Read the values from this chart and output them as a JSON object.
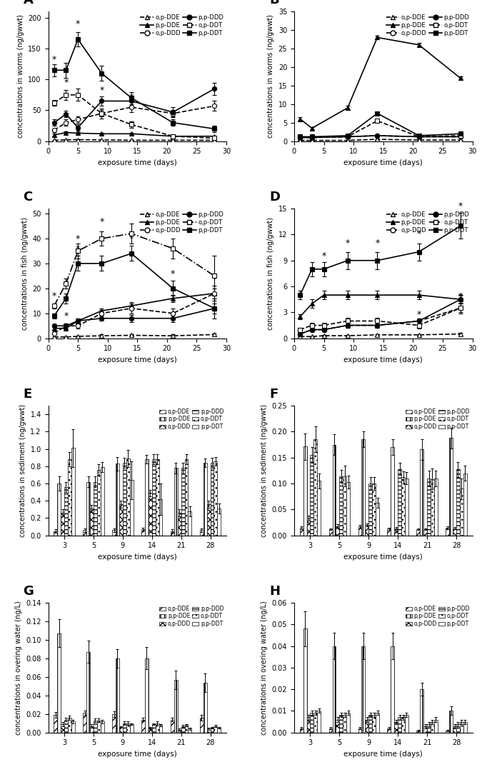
{
  "A": {
    "title": "A",
    "ylabel": "concentrations in worms (ng/gwwt)",
    "xlabel": "exposure time (days)",
    "xlim": [
      0,
      30
    ],
    "ylim": [
      0,
      210
    ],
    "yticks": [
      0,
      50,
      100,
      150,
      200
    ],
    "xticks": [
      0,
      5,
      10,
      15,
      20,
      25,
      30
    ],
    "time": [
      1,
      3,
      5,
      9,
      14,
      21,
      28
    ],
    "op_DDE": [
      1.5,
      2.0,
      2.5,
      2.0,
      1.5,
      1.5,
      1.5
    ],
    "pp_DDE": [
      10,
      14,
      13,
      12,
      12,
      8,
      8
    ],
    "op_DDD": [
      18,
      30,
      35,
      45,
      55,
      45,
      57
    ],
    "pp_DDD": [
      30,
      44,
      22,
      65,
      65,
      47,
      85
    ],
    "op_DDT": [
      62,
      75,
      75,
      45,
      27,
      8,
      5
    ],
    "pp_DDT": [
      115,
      115,
      165,
      110,
      70,
      30,
      20
    ],
    "op_DDE_err": [
      0.5,
      0.5,
      0.5,
      0.5,
      0.5,
      0.5,
      0.5
    ],
    "pp_DDE_err": [
      2,
      2,
      2,
      2,
      2,
      1,
      1
    ],
    "op_DDD_err": [
      3,
      5,
      5,
      5,
      8,
      5,
      8
    ],
    "pp_DDD_err": [
      5,
      5,
      5,
      8,
      8,
      8,
      10
    ],
    "op_DDT_err": [
      5,
      8,
      10,
      8,
      5,
      3,
      2
    ],
    "pp_DDT_err": [
      10,
      12,
      12,
      12,
      10,
      5,
      5
    ],
    "stars": [
      [
        1,
        125
      ],
      [
        3,
        88
      ],
      [
        5,
        182
      ],
      [
        9,
        75
      ],
      [
        14,
        63
      ],
      [
        21,
        33
      ],
      [
        28,
        10
      ]
    ]
  },
  "B": {
    "title": "B",
    "ylabel": "concentrations in worms (ng/gwwt)",
    "xlabel": "exposure time (days)",
    "xlim": [
      0,
      30
    ],
    "ylim": [
      0,
      35
    ],
    "yticks": [
      0,
      5,
      10,
      15,
      20,
      25,
      30,
      35
    ],
    "xticks": [
      0,
      5,
      10,
      15,
      20,
      25,
      30
    ],
    "time": [
      1,
      3,
      9,
      14,
      21,
      28
    ],
    "op_DDE": [
      0.2,
      0.2,
      0.2,
      0.5,
      0.3,
      0.3
    ],
    "pp_DDE": [
      6.0,
      3.5,
      9.0,
      28.0,
      26.0,
      17.0
    ],
    "op_DDD": [
      1.0,
      1.0,
      1.2,
      1.5,
      1.2,
      1.2
    ],
    "pp_DDD": [
      1.0,
      1.0,
      1.2,
      1.5,
      1.2,
      1.2
    ],
    "op_DDT": [
      1.0,
      1.0,
      1.2,
      5.5,
      1.2,
      1.5
    ],
    "pp_DDT": [
      1.2,
      1.2,
      1.5,
      7.5,
      1.5,
      2.0
    ],
    "op_DDE_err": [
      0.05,
      0.05,
      0.05,
      0.1,
      0.05,
      0.05
    ],
    "pp_DDE_err": [
      0.5,
      0.3,
      0.5,
      0.5,
      0.5,
      0.5
    ],
    "op_DDD_err": [
      0.1,
      0.1,
      0.1,
      0.2,
      0.1,
      0.1
    ],
    "pp_DDD_err": [
      0.1,
      0.1,
      0.1,
      0.2,
      0.1,
      0.1
    ],
    "op_DDT_err": [
      0.1,
      0.1,
      0.1,
      0.3,
      0.1,
      0.1
    ],
    "pp_DDT_err": [
      0.1,
      0.1,
      0.1,
      0.3,
      0.1,
      0.1
    ],
    "stars": []
  },
  "C": {
    "title": "C",
    "ylabel": "concentrations in fish (ng/gwwt)",
    "xlabel": "exposure time (days)",
    "xlim": [
      0,
      30
    ],
    "ylim": [
      0,
      52
    ],
    "yticks": [
      0,
      10,
      20,
      30,
      40,
      50
    ],
    "xticks": [
      0,
      5,
      10,
      15,
      20,
      25,
      30
    ],
    "time": [
      1,
      3,
      5,
      9,
      14,
      21,
      28
    ],
    "op_DDE": [
      0.5,
      0.5,
      0.8,
      1.0,
      1.2,
      1.0,
      1.5
    ],
    "pp_DDE": [
      4.0,
      4.0,
      7.0,
      11.0,
      13.0,
      16.0,
      18.0
    ],
    "op_DDD": [
      2.0,
      5.0,
      5.0,
      10.0,
      12.0,
      10.0,
      18.0
    ],
    "pp_DDD": [
      5.0,
      5.0,
      7.0,
      8.0,
      8.0,
      8.0,
      12.0
    ],
    "op_DDT": [
      13.0,
      22.0,
      35.0,
      40.0,
      42.0,
      36.0,
      25.0
    ],
    "pp_DDT": [
      9.0,
      16.0,
      30.0,
      30.0,
      34.0,
      20.0,
      12.0
    ],
    "op_DDE_err": [
      0.2,
      0.2,
      0.2,
      0.5,
      0.5,
      0.5,
      0.5
    ],
    "pp_DDE_err": [
      0.5,
      0.5,
      1.0,
      1.0,
      1.5,
      1.5,
      2.0
    ],
    "op_DDD_err": [
      0.5,
      1.0,
      1.0,
      1.5,
      2.0,
      2.0,
      3.0
    ],
    "pp_DDD_err": [
      0.5,
      1.0,
      1.0,
      1.0,
      1.5,
      1.5,
      2.0
    ],
    "op_DDT_err": [
      1.0,
      2.0,
      3.0,
      3.0,
      4.0,
      4.0,
      8.0
    ],
    "pp_DDT_err": [
      1.0,
      2.0,
      3.0,
      3.0,
      3.0,
      3.0,
      4.0
    ],
    "stars": [
      [
        1,
        15
      ],
      [
        3,
        7
      ],
      [
        3,
        19
      ],
      [
        5,
        38
      ],
      [
        5,
        34
      ],
      [
        9,
        45
      ],
      [
        14,
        38
      ],
      [
        21,
        24
      ],
      [
        28,
        22
      ],
      [
        28,
        22
      ]
    ]
  },
  "D": {
    "title": "D",
    "ylabel": "concentrations in fish (ng/gwwt)",
    "xlabel": "exposure time (days)",
    "xlim": [
      0,
      30
    ],
    "ylim": [
      0,
      15
    ],
    "yticks": [
      0,
      3,
      6,
      9,
      12,
      15
    ],
    "xticks": [
      0,
      5,
      10,
      15,
      20,
      25,
      30
    ],
    "time": [
      1,
      3,
      5,
      9,
      14,
      21,
      28
    ],
    "op_DDE": [
      0.2,
      0.2,
      0.3,
      0.3,
      0.4,
      0.4,
      0.5
    ],
    "pp_DDE": [
      2.5,
      4.0,
      5.0,
      5.0,
      5.0,
      5.0,
      4.5
    ],
    "op_DDD": [
      0.5,
      1.0,
      1.0,
      1.5,
      1.5,
      2.0,
      3.5
    ],
    "pp_DDD": [
      0.5,
      1.0,
      1.0,
      1.5,
      1.5,
      2.0,
      4.5
    ],
    "op_DDT": [
      1.0,
      1.5,
      1.5,
      2.0,
      2.0,
      1.5,
      3.5
    ],
    "pp_DDT": [
      5.0,
      8.0,
      8.0,
      9.0,
      9.0,
      10.0,
      13.0
    ],
    "op_DDE_err": [
      0.05,
      0.05,
      0.1,
      0.1,
      0.1,
      0.1,
      0.1
    ],
    "pp_DDE_err": [
      0.3,
      0.5,
      0.5,
      0.5,
      0.5,
      0.5,
      0.5
    ],
    "op_DDD_err": [
      0.1,
      0.2,
      0.2,
      0.3,
      0.3,
      0.3,
      0.5
    ],
    "pp_DDD_err": [
      0.1,
      0.2,
      0.2,
      0.3,
      0.3,
      0.3,
      0.5
    ],
    "op_DDT_err": [
      0.2,
      0.3,
      0.3,
      0.4,
      0.4,
      0.4,
      0.6
    ],
    "pp_DDT_err": [
      0.5,
      0.8,
      0.8,
      1.0,
      1.0,
      1.0,
      1.5
    ],
    "stars": [
      [
        5,
        9.0
      ],
      [
        9,
        10.5
      ],
      [
        14,
        10.5
      ],
      [
        21,
        11.5
      ],
      [
        21,
        2.2
      ],
      [
        28,
        14.8
      ],
      [
        28,
        4.3
      ],
      [
        28,
        4.3
      ]
    ]
  },
  "E": {
    "title": "E",
    "ylabel": "concentrations in sediment (ng/gwwt)",
    "xlabel": "exposure time (days)",
    "ylim": [
      0,
      1.5
    ],
    "yticks": [
      0.0,
      0.2,
      0.4,
      0.6,
      0.8,
      1.0,
      1.2,
      1.4
    ],
    "categories": [
      3,
      5,
      9,
      14,
      21,
      28
    ],
    "op_DDE": [
      0.05,
      0.06,
      0.06,
      0.07,
      0.05,
      0.06
    ],
    "pp_DDE": [
      0.6,
      0.62,
      0.83,
      0.88,
      0.78,
      0.84
    ],
    "op_DDD": [
      0.26,
      0.31,
      0.36,
      0.49,
      0.26,
      0.36
    ],
    "pp_DDD": [
      0.56,
      0.62,
      0.84,
      0.88,
      0.78,
      0.84
    ],
    "op_DDT": [
      0.88,
      0.76,
      0.89,
      0.88,
      0.88,
      0.86
    ],
    "pp_DDT": [
      1.01,
      0.79,
      0.64,
      0.42,
      0.28,
      0.31
    ],
    "op_DDE_err": [
      0.02,
      0.02,
      0.02,
      0.02,
      0.02,
      0.02
    ],
    "pp_DDE_err": [
      0.08,
      0.06,
      0.08,
      0.05,
      0.06,
      0.05
    ],
    "op_DDD_err": [
      0.04,
      0.04,
      0.04,
      0.04,
      0.04,
      0.04
    ],
    "pp_DDD_err": [
      0.06,
      0.06,
      0.06,
      0.06,
      0.06,
      0.06
    ],
    "op_DDT_err": [
      0.08,
      0.06,
      0.1,
      0.06,
      0.06,
      0.05
    ],
    "pp_DDT_err": [
      0.22,
      0.06,
      0.22,
      0.18,
      0.06,
      0.06
    ]
  },
  "F": {
    "title": "F",
    "ylabel": "concentrations in sediment (ng/gwwt)",
    "xlabel": "exposure time (days)",
    "ylim": [
      0,
      0.25
    ],
    "yticks": [
      0.0,
      0.05,
      0.1,
      0.15,
      0.2,
      0.25
    ],
    "categories": [
      3,
      5,
      9,
      14,
      21,
      28
    ],
    "op_DDE": [
      0.015,
      0.012,
      0.017,
      0.013,
      0.012,
      0.015
    ],
    "pp_DDE": [
      0.171,
      0.175,
      0.185,
      0.17,
      0.166,
      0.188
    ],
    "op_DDD": [
      0.033,
      0.018,
      0.02,
      0.014,
      0.012,
      0.014
    ],
    "pp_DDD": [
      0.155,
      0.114,
      0.1,
      0.128,
      0.11,
      0.127
    ],
    "op_DDT": [
      0.185,
      0.114,
      0.1,
      0.112,
      0.109,
      0.09
    ],
    "pp_DDT": [
      0.105,
      0.103,
      0.063,
      0.11,
      0.11,
      0.12
    ],
    "op_DDE_err": [
      0.003,
      0.002,
      0.003,
      0.002,
      0.002,
      0.003
    ],
    "pp_DDE_err": [
      0.025,
      0.02,
      0.015,
      0.015,
      0.02,
      0.02
    ],
    "op_DDD_err": [
      0.005,
      0.003,
      0.003,
      0.002,
      0.002,
      0.002
    ],
    "pp_DDD_err": [
      0.015,
      0.012,
      0.012,
      0.012,
      0.015,
      0.015
    ],
    "op_DDT_err": [
      0.025,
      0.02,
      0.012,
      0.012,
      0.02,
      0.02
    ],
    "pp_DDT_err": [
      0.015,
      0.012,
      0.01,
      0.012,
      0.015,
      0.015
    ]
  },
  "G": {
    "title": "G",
    "ylabel": "concentrations in overing water (ng/L)",
    "xlabel": "exposure time (days)",
    "ylim": [
      0,
      0.14
    ],
    "yticks": [
      0.0,
      0.02,
      0.04,
      0.06,
      0.08,
      0.1,
      0.12,
      0.14
    ],
    "categories": [
      3,
      5,
      9,
      14,
      21,
      28
    ],
    "op_DDE": [
      0.019,
      0.021,
      0.02,
      0.014,
      0.014,
      0.016
    ],
    "pp_DDE": [
      0.107,
      0.087,
      0.08,
      0.08,
      0.057,
      0.054
    ],
    "op_DDD": [
      0.009,
      0.007,
      0.006,
      0.005,
      0.003,
      0.004
    ],
    "pp_DDD": [
      0.014,
      0.013,
      0.01,
      0.009,
      0.007,
      0.005
    ],
    "op_DDT": [
      0.016,
      0.013,
      0.01,
      0.01,
      0.008,
      0.007
    ],
    "pp_DDT": [
      0.012,
      0.012,
      0.009,
      0.008,
      0.004,
      0.005
    ],
    "op_DDE_err": [
      0.003,
      0.003,
      0.003,
      0.002,
      0.002,
      0.003
    ],
    "pp_DDE_err": [
      0.015,
      0.012,
      0.01,
      0.012,
      0.01,
      0.01
    ],
    "op_DDD_err": [
      0.002,
      0.002,
      0.001,
      0.001,
      0.001,
      0.001
    ],
    "pp_DDD_err": [
      0.002,
      0.002,
      0.002,
      0.001,
      0.001,
      0.001
    ],
    "op_DDT_err": [
      0.002,
      0.002,
      0.002,
      0.002,
      0.001,
      0.001
    ],
    "pp_DDT_err": [
      0.002,
      0.002,
      0.001,
      0.001,
      0.001,
      0.001
    ]
  },
  "H": {
    "title": "H",
    "ylabel": "concentrations in overing water (ng/L)",
    "xlabel": "exposure time (days)",
    "ylim": [
      0,
      0.06
    ],
    "yticks": [
      0.0,
      0.01,
      0.02,
      0.03,
      0.04,
      0.05,
      0.06
    ],
    "categories": [
      3,
      5,
      9,
      14,
      21,
      28
    ],
    "op_DDE": [
      0.002,
      0.002,
      0.002,
      0.002,
      0.001,
      0.001
    ],
    "pp_DDE": [
      0.048,
      0.04,
      0.04,
      0.04,
      0.02,
      0.01
    ],
    "op_DDD": [
      0.007,
      0.006,
      0.006,
      0.005,
      0.003,
      0.003
    ],
    "pp_DDD": [
      0.009,
      0.008,
      0.008,
      0.007,
      0.004,
      0.004
    ],
    "op_DDT": [
      0.009,
      0.008,
      0.008,
      0.007,
      0.005,
      0.005
    ],
    "pp_DDT": [
      0.01,
      0.009,
      0.009,
      0.008,
      0.006,
      0.005
    ],
    "op_DDE_err": [
      0.0005,
      0.0005,
      0.0005,
      0.0005,
      0.0003,
      0.0003
    ],
    "pp_DDE_err": [
      0.008,
      0.006,
      0.006,
      0.006,
      0.003,
      0.002
    ],
    "op_DDD_err": [
      0.001,
      0.001,
      0.001,
      0.001,
      0.001,
      0.001
    ],
    "pp_DDD_err": [
      0.001,
      0.001,
      0.001,
      0.001,
      0.001,
      0.001
    ],
    "op_DDT_err": [
      0.001,
      0.001,
      0.001,
      0.001,
      0.001,
      0.001
    ],
    "pp_DDT_err": [
      0.001,
      0.001,
      0.001,
      0.001,
      0.001,
      0.001
    ]
  }
}
